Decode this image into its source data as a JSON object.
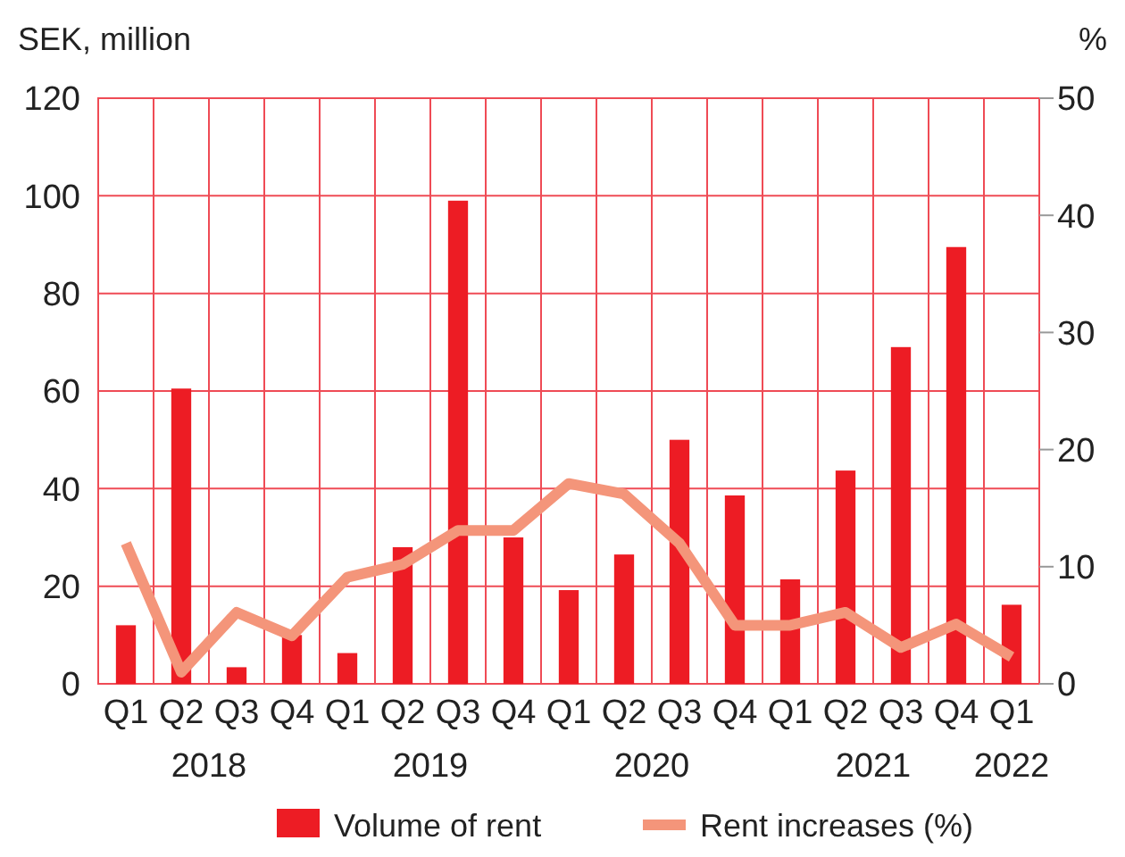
{
  "chart_data": {
    "type": "bar",
    "categories": [
      "Q1",
      "Q2",
      "Q3",
      "Q4",
      "Q1",
      "Q2",
      "Q3",
      "Q4",
      "Q1",
      "Q2",
      "Q3",
      "Q4",
      "Q1",
      "Q2",
      "Q3",
      "Q4",
      "Q1"
    ],
    "ylabel": "SEK, million",
    "y2label": "%",
    "annotations": [
      "2018",
      "2019",
      "2020",
      "2021",
      "2022"
    ],
    "series": [
      {
        "name": "Volume of rent",
        "color": "#ed1c24",
        "values": [
          12,
          60.5,
          3.4,
          10,
          6.3,
          28,
          99,
          30,
          19.2,
          26.5,
          50,
          38.6,
          21.4,
          43.7,
          69,
          89.5,
          16.2
        ]
      },
      {
        "name": "Rent increases (%)",
        "type": "line",
        "axis": "y2",
        "color": "#f4957a",
        "values": [
          12,
          1,
          6.1,
          4.1,
          9.1,
          10.2,
          13.1,
          13.1,
          17.1,
          16.2,
          12,
          5,
          5,
          6.1,
          3.1,
          5.1,
          2.3
        ]
      }
    ],
    "ylim": [
      0,
      120
    ],
    "yticks": [
      0,
      20,
      40,
      60,
      80,
      100,
      120
    ],
    "y2lim": [
      0,
      50
    ],
    "y2ticks": [
      0,
      10,
      20,
      30,
      40,
      50
    ],
    "grid": true,
    "legend": "bottom",
    "marker": "none",
    "line_style": "solid"
  }
}
